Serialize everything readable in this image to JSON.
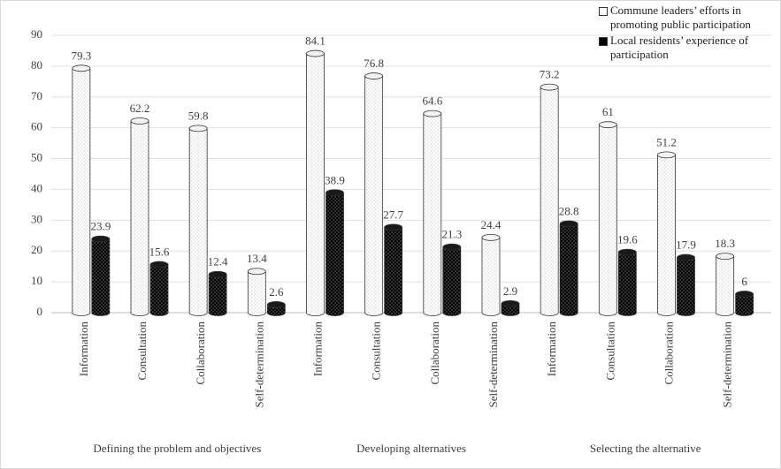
{
  "chart_data": {
    "type": "bar",
    "categories": [
      "Information",
      "Consultation",
      "Collaboration",
      "Self-determination",
      "Information",
      "Consultation",
      "Collaboration",
      "Self-determination",
      "Information",
      "Consultation",
      "Collaboration",
      "Self-determination"
    ],
    "groups": [
      "Defining the problem and objectives",
      "Developing alternatives",
      "Selecting the alternative"
    ],
    "series": [
      {
        "name": "Commune leaders’ efforts in promoting public participation",
        "color": "#ffffff",
        "values": [
          79.3,
          62.2,
          59.8,
          13.4,
          84.1,
          76.8,
          64.6,
          24.4,
          73.2,
          61,
          51.2,
          18.3
        ]
      },
      {
        "name": "Local residents’ experience of participation",
        "color": "#000000",
        "values": [
          23.9,
          15.6,
          12.4,
          2.6,
          38.9,
          27.7,
          21.3,
          2.9,
          28.8,
          19.6,
          17.9,
          6
        ]
      }
    ],
    "ylim": [
      0,
      90
    ],
    "yticks": [
      0,
      10,
      20,
      30,
      40,
      50,
      60,
      70,
      80,
      90
    ],
    "grid": true,
    "legend": "upper right"
  }
}
